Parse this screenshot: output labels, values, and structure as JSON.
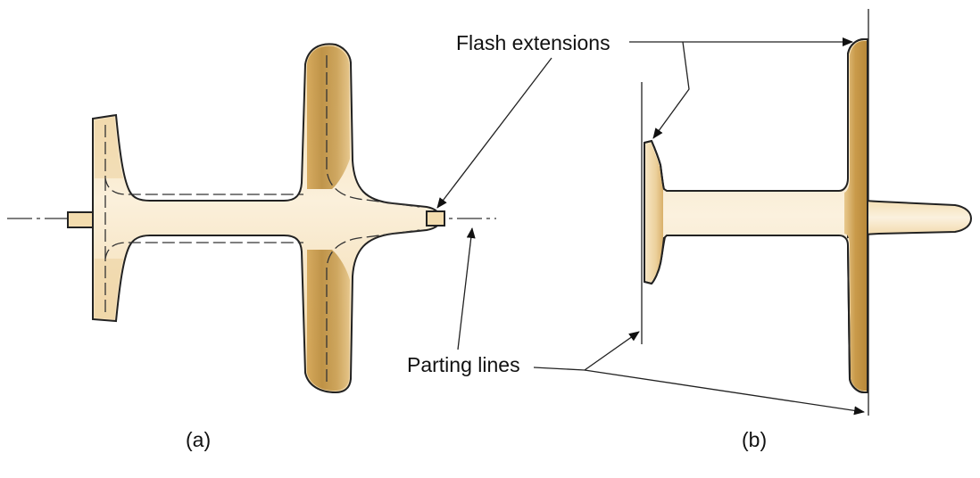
{
  "labels": {
    "flash_extensions": "Flash extensions",
    "parting_lines": "Parting lines"
  },
  "captions": {
    "a": "(a)",
    "b": "(b)"
  },
  "colors": {
    "part_light": "#f8e7c8",
    "part_mid": "#e8c68c",
    "part_dark": "#b98b3c",
    "outline": "#222222"
  }
}
